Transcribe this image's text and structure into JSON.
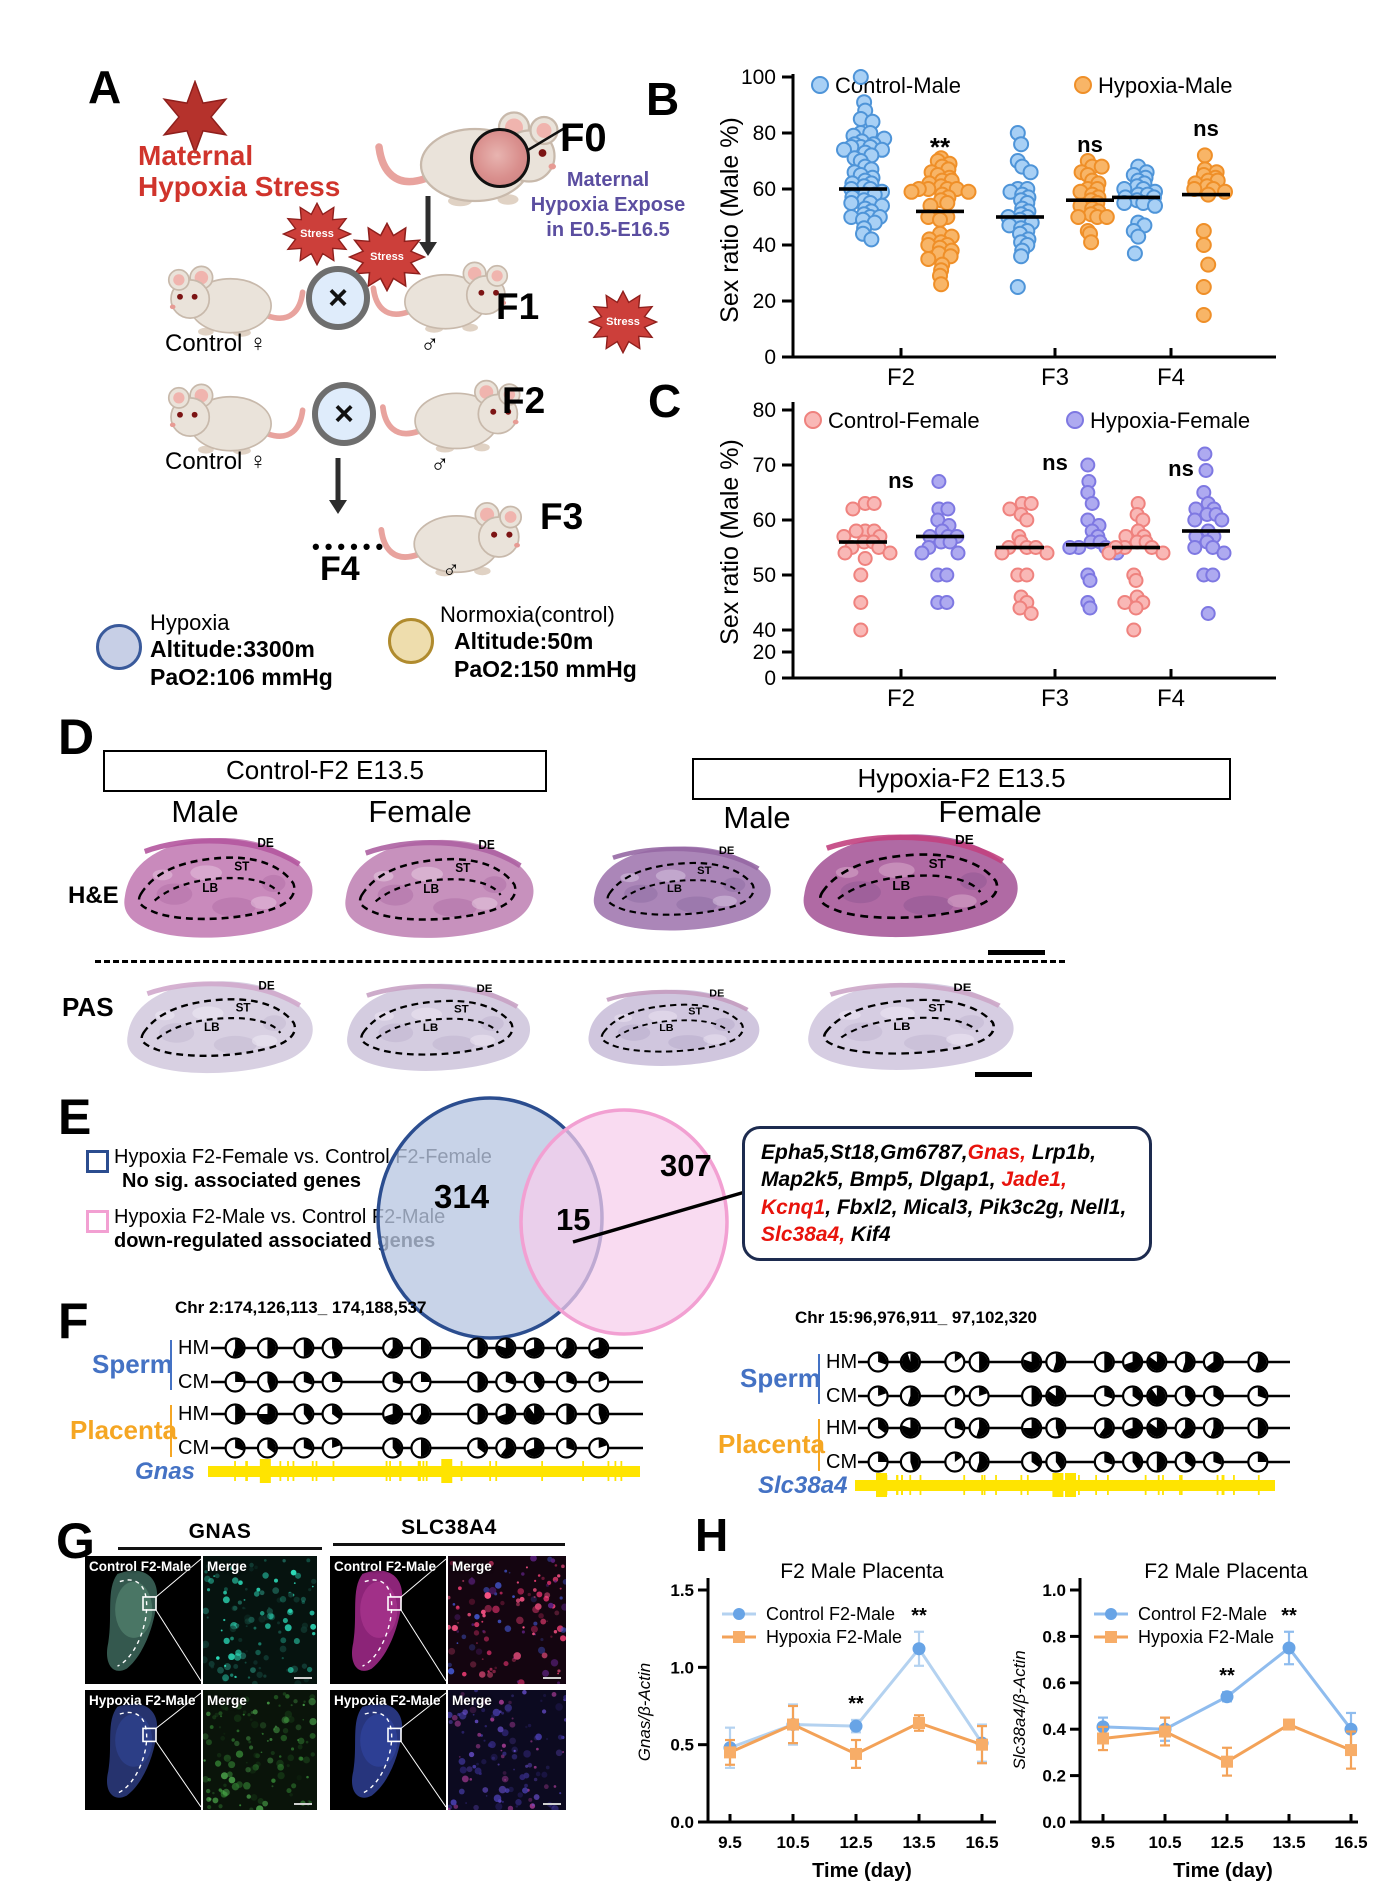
{
  "panels": {
    "a": "A",
    "b": "B",
    "c": "C",
    "d": "D",
    "e": "E",
    "f": "F",
    "g": "G",
    "h": "H"
  },
  "panel_a": {
    "stress_burst_label": "Stress",
    "stress_title_line1": "Maternal",
    "stress_title_line2": "Hypoxia Stress",
    "f0_label": "F0",
    "expose_note_line1": "Maternal",
    "expose_note_line2": "Hypoxia Expose",
    "expose_note_line3": "in E0.5-E16.5",
    "cross_symbol": "×",
    "control_female_label": "Control ♀",
    "male_symbol": "♂",
    "f1_label": "F1",
    "f2_label": "F2",
    "f3_label": "F3",
    "f4_label": "F4",
    "f4_dots": "••••••",
    "legend_hypoxia": {
      "title": "Hypoxia",
      "altitude": "Altitude:3300m",
      "pao2": "PaO2:106 mmHg",
      "circle_fill": "#c7cfe6",
      "circle_stroke": "#3a5a9b"
    },
    "legend_normoxia": {
      "title": "Normoxia(control)",
      "altitude": "Altitude:50m",
      "pao2": "PaO2:150 mmHg",
      "circle_fill": "#eeddad",
      "circle_stroke": "#b08b2e"
    }
  },
  "panel_d": {
    "group_headers": [
      "Control-F2 E13.5",
      "Hypoxia-F2 E13.5"
    ],
    "col_labels": [
      "Male",
      "Female",
      "Male",
      "Female"
    ],
    "row_labels": [
      "H&E",
      "PAS"
    ],
    "tissue_labels": [
      "DE",
      "ST",
      "LB"
    ]
  },
  "panel_e": {
    "legend": [
      {
        "line1": "Hypoxia F2-Female vs. Control F2-Female",
        "line2": "No sig. associated genes",
        "box_color": "#2b4d8f"
      },
      {
        "line1": "Hypoxia F2-Male vs. Control F2-Male",
        "line2": "down-regulated associated genes",
        "box_color": "#f2a0d2"
      }
    ],
    "venn": {
      "left_count": "314",
      "overlap_count": "15",
      "right_count": "307",
      "left_fill": "#b8c6e2",
      "left_stroke": "#2b4d8f",
      "right_fill": "#f6cdeb",
      "right_stroke": "#f2a0d2"
    },
    "gene_box_segments": [
      {
        "text": "Epha5,St18,Gm6787,",
        "red": false
      },
      {
        "text": "Gnas,",
        "red": true
      },
      {
        "text": " Lrp1b, Map2k5, Bmp5, Dlgap1, ",
        "red": false
      },
      {
        "text": "Jade1, Kcnq1",
        "red": true
      },
      {
        "text": ", Fbxl2, Mical3, Pik3c2g, Nell1, ",
        "red": false
      },
      {
        "text": "Slc38a4,",
        "red": true
      },
      {
        "text": " Kif4",
        "red": false
      }
    ]
  },
  "panel_f": {
    "left_region": "Chr 2:174,126,113_ 174,188,537",
    "right_region": "Chr 15:96,976,911_ 97,102,320",
    "sperm_label": "Sperm",
    "placenta_label": "Placenta",
    "hm_label": "HM",
    "cm_label": "CM",
    "left_gene": "Gnas",
    "right_gene": "Slc38a4",
    "sperm_color": "#4472c4",
    "placenta_color": "#f5a623",
    "track_color": "#ffe400",
    "left_positions": [
      0.03,
      0.11,
      0.2,
      0.27,
      0.42,
      0.49,
      0.63,
      0.7,
      0.77,
      0.85,
      0.93
    ],
    "left_fills": [
      [
        0.55,
        0.5,
        0.5,
        0.45,
        0.6,
        0.5,
        0.5,
        0.8,
        0.7,
        0.6,
        0.7
      ],
      [
        0.25,
        0.45,
        0.3,
        0.25,
        0.3,
        0.25,
        0.5,
        0.3,
        0.4,
        0.3,
        0.2
      ],
      [
        0.5,
        0.75,
        0.4,
        0.35,
        0.7,
        0.6,
        0.5,
        0.7,
        0.9,
        0.5,
        0.45
      ],
      [
        0.3,
        0.35,
        0.3,
        0.2,
        0.4,
        0.5,
        0.35,
        0.6,
        0.7,
        0.3,
        0.2
      ]
    ],
    "right_positions": [
      0.02,
      0.1,
      0.21,
      0.27,
      0.4,
      0.46,
      0.58,
      0.65,
      0.71,
      0.78,
      0.85,
      0.96
    ],
    "right_fills": [
      [
        0.3,
        0.95,
        0.15,
        0.5,
        0.8,
        0.55,
        0.5,
        0.7,
        0.85,
        0.55,
        0.65,
        0.55
      ],
      [
        0.2,
        0.55,
        0.12,
        0.2,
        0.5,
        0.85,
        0.3,
        0.35,
        0.9,
        0.4,
        0.35,
        0.3
      ],
      [
        0.35,
        0.8,
        0.3,
        0.55,
        0.75,
        0.45,
        0.6,
        0.7,
        0.85,
        0.6,
        0.55,
        0.5
      ],
      [
        0.25,
        0.45,
        0.15,
        0.55,
        0.35,
        0.4,
        0.3,
        0.4,
        0.5,
        0.35,
        0.3,
        0.25
      ]
    ]
  },
  "panel_g": {
    "col1": "GNAS",
    "col2": "SLC38A4",
    "control_label": "Control F2-Male",
    "hypoxia_label": "Hypoxia F2-Male",
    "merge_label": "Merge"
  },
  "chart_data": [
    {
      "id": "chart-sexratio-male",
      "type": "scatter-beeswarm",
      "title": "",
      "ylabel": "Sex ratio (Male %)",
      "ylim": [
        0,
        100
      ],
      "yticks": [
        0,
        20,
        40,
        60,
        80,
        100
      ],
      "categories": [
        "F2",
        "F3",
        "F4"
      ],
      "legend": [
        {
          "label": "Control-Male",
          "fill": "#a8d0f5",
          "stroke": "#4e94d8"
        },
        {
          "label": "Hypoxia-Male",
          "fill": "#f8b567",
          "stroke": "#ef8f28"
        }
      ],
      "sig": [
        "**",
        "ns",
        "ns"
      ],
      "groups": [
        {
          "category": "F2",
          "series": 0,
          "mean": 60,
          "values": [
            100,
            91,
            88,
            85,
            84,
            80,
            80,
            79,
            78,
            77,
            76,
            76,
            75,
            75,
            75,
            74,
            74,
            73,
            72,
            71,
            70,
            68,
            67,
            66,
            65,
            64,
            63,
            62,
            62,
            61,
            60,
            60,
            59,
            58,
            58,
            57,
            56,
            55,
            55,
            54,
            53,
            52,
            51,
            50,
            50,
            50,
            49,
            48,
            46,
            44,
            42
          ]
        },
        {
          "category": "F2",
          "series": 1,
          "mean": 52,
          "values": [
            71,
            70,
            69,
            68,
            67,
            66,
            65,
            64,
            63,
            63,
            62,
            61,
            60,
            60,
            60,
            60,
            59,
            59,
            58,
            57,
            56,
            55,
            54,
            50,
            50,
            50,
            49,
            44,
            43,
            42,
            41,
            40,
            40,
            39,
            38,
            37,
            36,
            35,
            33,
            31,
            29,
            26
          ]
        },
        {
          "category": "F3",
          "series": 0,
          "mean": 50,
          "values": [
            80,
            76,
            70,
            68,
            66,
            60,
            60,
            59,
            58,
            57,
            56,
            55,
            53,
            52,
            51,
            50,
            50,
            49,
            48,
            47,
            46,
            45,
            44,
            42,
            41,
            40,
            38,
            36,
            25
          ]
        },
        {
          "category": "F3",
          "series": 1,
          "mean": 56,
          "values": [
            70,
            68,
            68,
            66,
            65,
            63,
            62,
            60,
            60,
            59,
            58,
            57,
            56,
            55,
            54,
            53,
            52,
            51,
            50,
            50,
            50,
            45,
            44,
            41
          ]
        },
        {
          "category": "F4",
          "series": 0,
          "mean": 57,
          "values": [
            68,
            66,
            65,
            64,
            63,
            62,
            61,
            60,
            60,
            59,
            58,
            58,
            57,
            57,
            56,
            55,
            55,
            54,
            48,
            47,
            45,
            43,
            37
          ]
        },
        {
          "category": "F4",
          "series": 1,
          "mean": 58,
          "values": [
            72,
            67,
            66,
            65,
            64,
            63,
            63,
            62,
            61,
            60,
            60,
            59,
            58,
            45,
            40,
            33,
            25,
            15
          ]
        }
      ]
    },
    {
      "id": "chart-sexratio-female",
      "type": "scatter-beeswarm",
      "title": "",
      "ylabel": "Sex ratio (Male %)",
      "ylim": [
        0,
        80
      ],
      "yticks": [
        0,
        20,
        40,
        50,
        60,
        70,
        80
      ],
      "categories": [
        "F2",
        "F3",
        "F4"
      ],
      "legend": [
        {
          "label": "Control-Female",
          "fill": "#f9b8b6",
          "stroke": "#ef827e"
        },
        {
          "label": "Hypoxia-Female",
          "fill": "#aeaaf0",
          "stroke": "#7e78e2"
        }
      ],
      "sig": [
        "ns",
        "ns",
        "ns"
      ],
      "groups": [
        {
          "category": "F2",
          "series": 0,
          "mean": 56,
          "values": [
            63,
            63,
            62,
            58,
            58,
            58,
            57,
            57,
            56,
            56,
            55,
            55,
            54,
            54,
            53,
            50,
            45,
            40
          ]
        },
        {
          "category": "F2",
          "series": 1,
          "mean": 57,
          "values": [
            67,
            62,
            62,
            60,
            59,
            58,
            57,
            57,
            57,
            56,
            56,
            55,
            54,
            54,
            50,
            50,
            45,
            45
          ]
        },
        {
          "category": "F3",
          "series": 0,
          "mean": 55,
          "values": [
            63,
            63,
            62,
            61,
            60,
            57,
            56,
            55,
            55,
            55,
            54,
            54,
            50,
            50,
            46,
            45,
            44,
            43
          ]
        },
        {
          "category": "F3",
          "series": 1,
          "mean": 55.5,
          "values": [
            70,
            67,
            65,
            63,
            60,
            59,
            58,
            57,
            56,
            56,
            55,
            55,
            55,
            54,
            50,
            49,
            45,
            44
          ]
        },
        {
          "category": "F4",
          "series": 0,
          "mean": 55,
          "values": [
            63,
            61,
            60,
            58,
            57,
            57,
            56,
            56,
            55,
            55,
            55,
            54,
            54,
            50,
            49,
            46,
            45,
            45,
            44,
            40
          ]
        },
        {
          "category": "F4",
          "series": 1,
          "mean": 58,
          "values": [
            72,
            69,
            65,
            63,
            62,
            62,
            61,
            61,
            60,
            60,
            58,
            57,
            57,
            56,
            55,
            55,
            54,
            50,
            50,
            43
          ]
        }
      ]
    },
    {
      "id": "chart-gnas",
      "type": "line",
      "title": "F2 Male Placenta",
      "ylabel": "Gnas/β-Actin",
      "xlabel": "Time (day)",
      "x": [
        "9.5",
        "10.5",
        "12.5",
        "13.5",
        "16.5"
      ],
      "ylim": [
        0,
        1.5
      ],
      "yticks": [
        0,
        0.5,
        1,
        1.5
      ],
      "series": [
        {
          "name": "Control F2-Male",
          "marker": "circle",
          "line_color": "#b4d2f0",
          "marker_color": "#68a4e6",
          "values": [
            0.48,
            0.63,
            0.62,
            1.12,
            0.51
          ],
          "errors": [
            0.13,
            0.13,
            0.04,
            0.11,
            0.12
          ]
        },
        {
          "name": "Hypoxia F2-Male",
          "marker": "square",
          "line_color": "#f3a258",
          "marker_color": "#f7ad68",
          "values": [
            0.45,
            0.63,
            0.44,
            0.64,
            0.5
          ],
          "errors": [
            0.08,
            0.12,
            0.09,
            0.05,
            0.12
          ]
        }
      ],
      "sig": [
        {
          "x_index": 2,
          "label": "**"
        },
        {
          "x_index": 3,
          "label": "**"
        }
      ]
    },
    {
      "id": "chart-slc38a4",
      "type": "line",
      "title": "F2 Male Placenta",
      "ylabel": "Slc38a4/β-Actin",
      "xlabel": "Time (day)",
      "x": [
        "9.5",
        "10.5",
        "12.5",
        "13.5",
        "16.5"
      ],
      "ylim": [
        0,
        1
      ],
      "yticks": [
        0,
        0.2,
        0.4,
        0.6,
        0.8,
        1
      ],
      "series": [
        {
          "name": "Control F2-Male",
          "marker": "circle",
          "line_color": "#8fbcee",
          "marker_color": "#68a4e6",
          "values": [
            0.41,
            0.4,
            0.54,
            0.75,
            0.4
          ],
          "errors": [
            0.04,
            0.05,
            0.02,
            0.07,
            0.07
          ]
        },
        {
          "name": "Hypoxia F2-Male",
          "marker": "square",
          "line_color": "#f3a258",
          "marker_color": "#f7ad68",
          "values": [
            0.36,
            0.39,
            0.26,
            0.42,
            0.31
          ],
          "errors": [
            0.05,
            0.06,
            0.06,
            0.02,
            0.08
          ]
        }
      ],
      "sig": [
        {
          "x_index": 2,
          "label": "**"
        },
        {
          "x_index": 3,
          "label": "**"
        }
      ]
    }
  ]
}
